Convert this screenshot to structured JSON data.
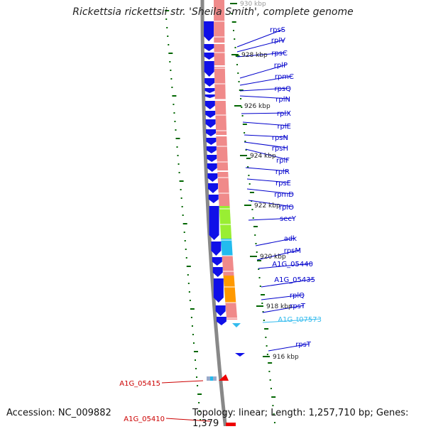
{
  "title": "Rickettsia rickettsii str. 'Sheila Smith', complete genome",
  "footer": {
    "accession": "Accession: NC_009882",
    "topology": "Topology: linear; Length: 1,257,710 bp; Genes: 1,379"
  },
  "scale_labels": [
    "930 kbp",
    "928 kbp",
    "926 kbp",
    "924 kbp",
    "922 kbp",
    "920 kbp",
    "918 kbp",
    "916 kbp"
  ],
  "genes": [
    {
      "label": "rpsS",
      "color": "#0000cc"
    },
    {
      "label": "rplV",
      "color": "#0000cc"
    },
    {
      "label": "rpsC",
      "color": "#0000cc"
    },
    {
      "label": "rplP",
      "color": "#0000cc"
    },
    {
      "label": "rpmC",
      "color": "#0000cc"
    },
    {
      "label": "rpsQ",
      "color": "#0000cc"
    },
    {
      "label": "rplN",
      "color": "#0000cc"
    },
    {
      "label": "rplX",
      "color": "#0000cc"
    },
    {
      "label": "rplE",
      "color": "#0000cc"
    },
    {
      "label": "rpsN",
      "color": "#0000cc"
    },
    {
      "label": "rpsH",
      "color": "#0000cc"
    },
    {
      "label": "rplF",
      "color": "#0000cc"
    },
    {
      "label": "rplR",
      "color": "#0000cc"
    },
    {
      "label": "rpsE",
      "color": "#0000cc"
    },
    {
      "label": "rpmD",
      "color": "#0000cc"
    },
    {
      "label": "rplO",
      "color": "#0000cc"
    },
    {
      "label": "secY",
      "color": "#0000cc"
    },
    {
      "label": "adk",
      "color": "#0000cc"
    },
    {
      "label": "rpsM",
      "color": "#0000cc"
    },
    {
      "label": "A1G_05440",
      "color": "#0000cc"
    },
    {
      "label": "A1G_05435",
      "color": "#0000cc"
    },
    {
      "label": "rplQ",
      "color": "#0000cc"
    },
    {
      "label": "rpsT",
      "color": "#0000cc"
    },
    {
      "label": "A1G_t07573",
      "color": "#33bbee"
    },
    {
      "label": "rpsT",
      "color": "#0000cc"
    },
    {
      "label": "A1G_05415",
      "color": "#cc0000"
    },
    {
      "label": "A1G_05410",
      "color": "#cc0000"
    }
  ],
  "colors": {
    "forward_gene": "#1010e8",
    "cds_bar": "#f08a8a",
    "secY_feature": "#99ee33",
    "adk_feature": "#22bbee",
    "A1G_05435_feature": "#ff9900",
    "trna_label": "#33bbee",
    "reverse_gene": "#ee0000",
    "backbone": "#888888",
    "gc_ticks": "#006600"
  }
}
